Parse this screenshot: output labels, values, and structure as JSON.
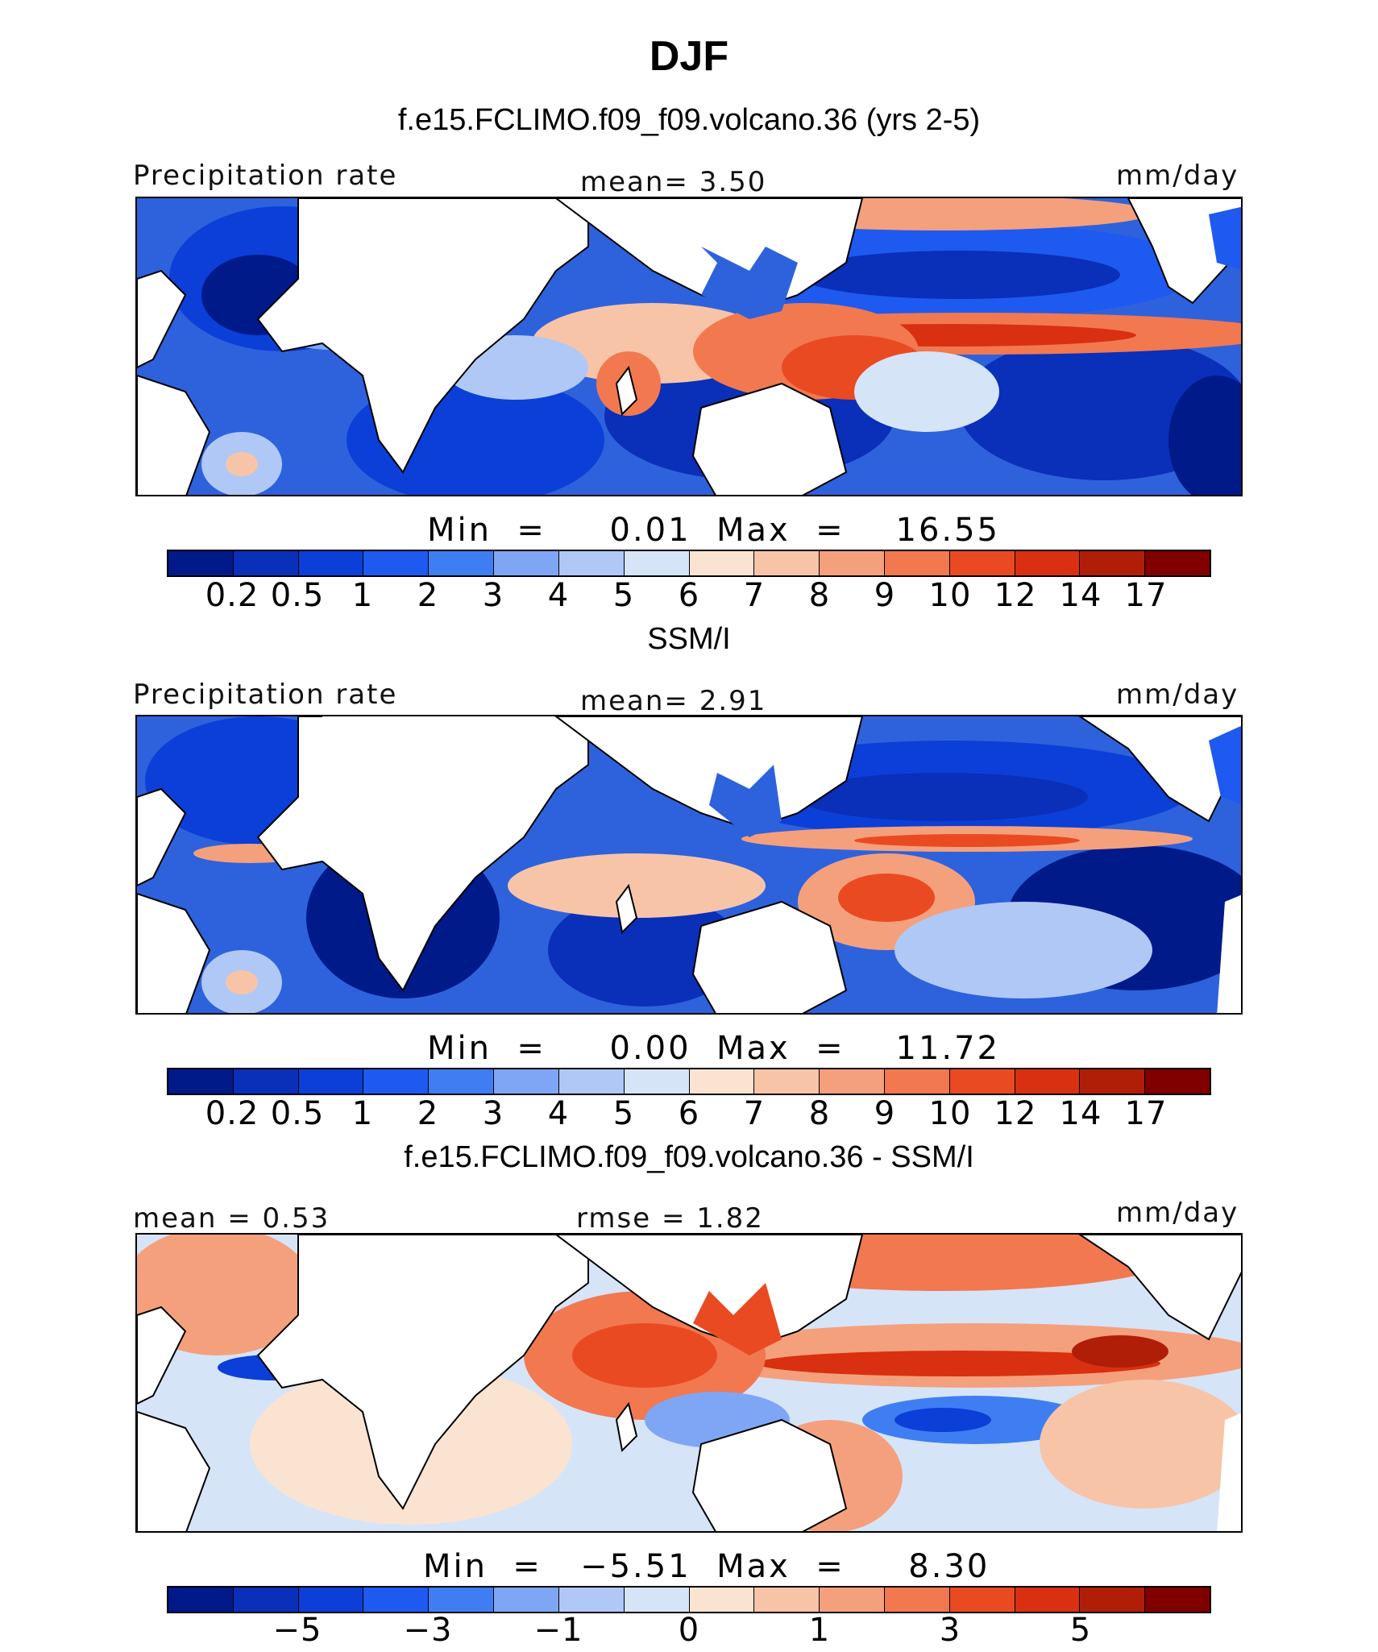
{
  "title": "DJF",
  "panels": [
    {
      "subtitle": "f.e15.FCLIMO.f09_f09.volcano.36 (yrs 2-5)",
      "left_label": "Precipitation rate",
      "center_label": "mean=   3.50",
      "right_label": "mm/day",
      "minmax": "Min  =     0.01  Max  =    16.55",
      "ticks": [
        "0.2",
        "0.5",
        "1",
        "2",
        "3",
        "4",
        "5",
        "6",
        "7",
        "8",
        "9",
        "10",
        "12",
        "14",
        "17"
      ],
      "bands": [
        {
          "color": "#2f6be0",
          "shape": "n-pacific"
        },
        {
          "color": "#d84020",
          "shape": "itcz-pacific"
        },
        {
          "color": "#e8603a",
          "shape": "maritime"
        }
      ]
    },
    {
      "subtitle": "SSM/I",
      "left_label": "Precipitation rate",
      "center_label": "mean=   2.91",
      "right_label": "mm/day",
      "minmax": "Min  =     0.00  Max  =    11.72",
      "ticks": [
        "0.2",
        "0.5",
        "1",
        "2",
        "3",
        "4",
        "5",
        "6",
        "7",
        "8",
        "9",
        "10",
        "12",
        "14",
        "17"
      ]
    },
    {
      "subtitle": "f.e15.FCLIMO.f09_f09.volcano.36 - SSM/I",
      "left_label": "mean =   0.53",
      "center_label": "rmse =   1.82",
      "right_label": "mm/day",
      "minmax": "Min  =   −5.51  Max  =     8.30",
      "ticks": [
        "−5",
        "−3",
        "−1",
        "0",
        "1",
        "3",
        "5"
      ]
    }
  ],
  "colorbar_colors": [
    "#001a8a",
    "#0a2fb8",
    "#0b3fd8",
    "#1e5af0",
    "#3f7ef2",
    "#7fa6f4",
    "#b0c8f6",
    "#d6e4f8",
    "#fbe3d2",
    "#f8c4a8",
    "#f5a07c",
    "#f27850",
    "#ea4a22",
    "#d83010",
    "#b01e08",
    "#800000"
  ]
}
